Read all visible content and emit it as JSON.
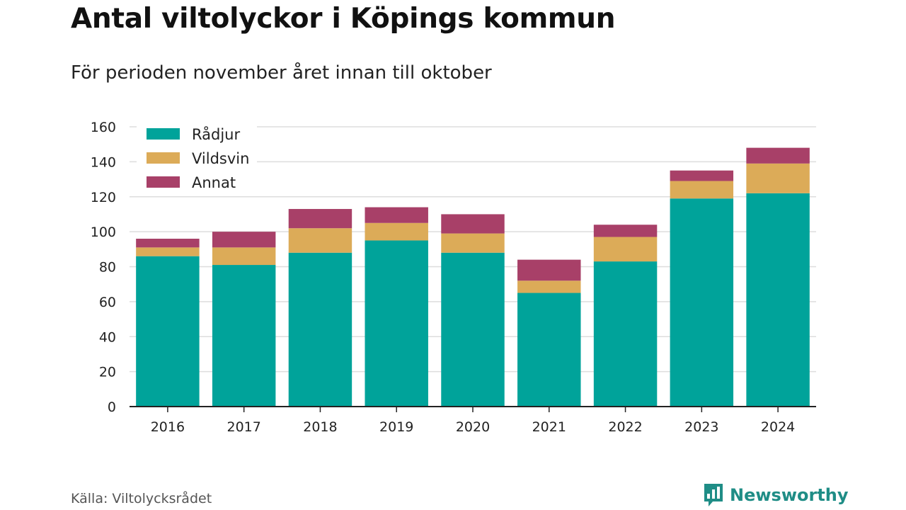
{
  "header": {
    "title": "Antal viltolyckor i Köpings kommun",
    "subtitle": "För perioden november året innan till oktober"
  },
  "footer": {
    "source": "Källa: Viltolycksrådet",
    "brand": "Newsworthy",
    "brand_icon": "newsworthy-logo-icon"
  },
  "colors": {
    "Rådjur": "#00a39a",
    "Vildsvin": "#dcab58",
    "Annat": "#a84068",
    "grid": "#dddddd",
    "axis": "#222222"
  },
  "chart_data": {
    "type": "bar",
    "stacked": true,
    "categories": [
      "2016",
      "2017",
      "2018",
      "2019",
      "2020",
      "2021",
      "2022",
      "2023",
      "2024"
    ],
    "series": [
      {
        "name": "Rådjur",
        "values": [
          86,
          81,
          88,
          95,
          88,
          65,
          83,
          119,
          122
        ]
      },
      {
        "name": "Vildsvin",
        "values": [
          5,
          10,
          14,
          10,
          11,
          7,
          14,
          10,
          17
        ]
      },
      {
        "name": "Annat",
        "values": [
          5,
          9,
          11,
          9,
          11,
          12,
          7,
          6,
          9
        ]
      }
    ],
    "ylim": [
      0,
      160
    ],
    "yticks": [
      0,
      20,
      40,
      60,
      80,
      100,
      120,
      140,
      160
    ],
    "xlabel": "",
    "ylabel": "",
    "grid": true,
    "legend": "top-left"
  }
}
